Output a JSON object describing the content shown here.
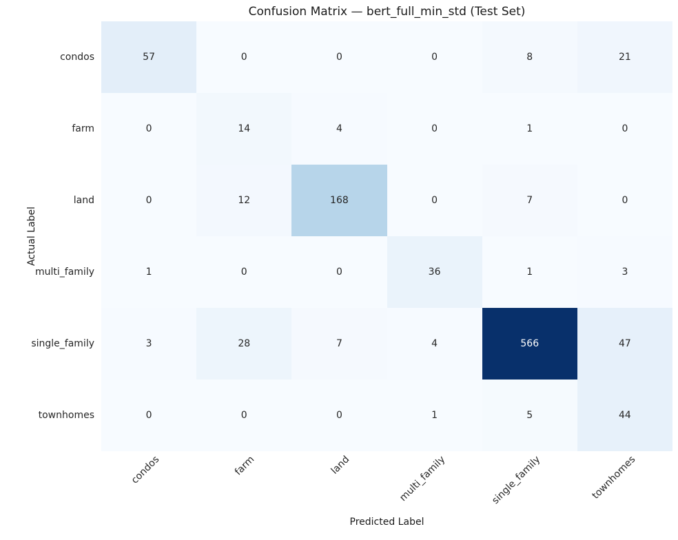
{
  "chart_data": {
    "type": "heatmap",
    "title": "Confusion Matrix — bert_full_min_std (Test Set)",
    "xlabel": "Predicted Label",
    "ylabel": "Actual Label",
    "categories": [
      "condos",
      "farm",
      "land",
      "multi_family",
      "single_family",
      "townhomes"
    ],
    "matrix": [
      [
        57,
        0,
        0,
        0,
        8,
        21
      ],
      [
        0,
        14,
        4,
        0,
        1,
        0
      ],
      [
        0,
        12,
        168,
        0,
        7,
        0
      ],
      [
        1,
        0,
        0,
        36,
        1,
        3
      ],
      [
        3,
        28,
        7,
        4,
        566,
        47
      ],
      [
        0,
        0,
        0,
        1,
        5,
        44
      ]
    ],
    "vmin": 0,
    "vmax": 566,
    "colorbar": false,
    "grid": false,
    "colormap_name": "Blues",
    "colormap_anchors": [
      "#f7fbff",
      "#deebf7",
      "#c6dbef",
      "#9ecae1",
      "#6baed6",
      "#4292c6",
      "#2171b5",
      "#08519c",
      "#08306b"
    ],
    "annot_color_light_cell": "#262626",
    "annot_color_dark_cell": "#ffffff"
  }
}
